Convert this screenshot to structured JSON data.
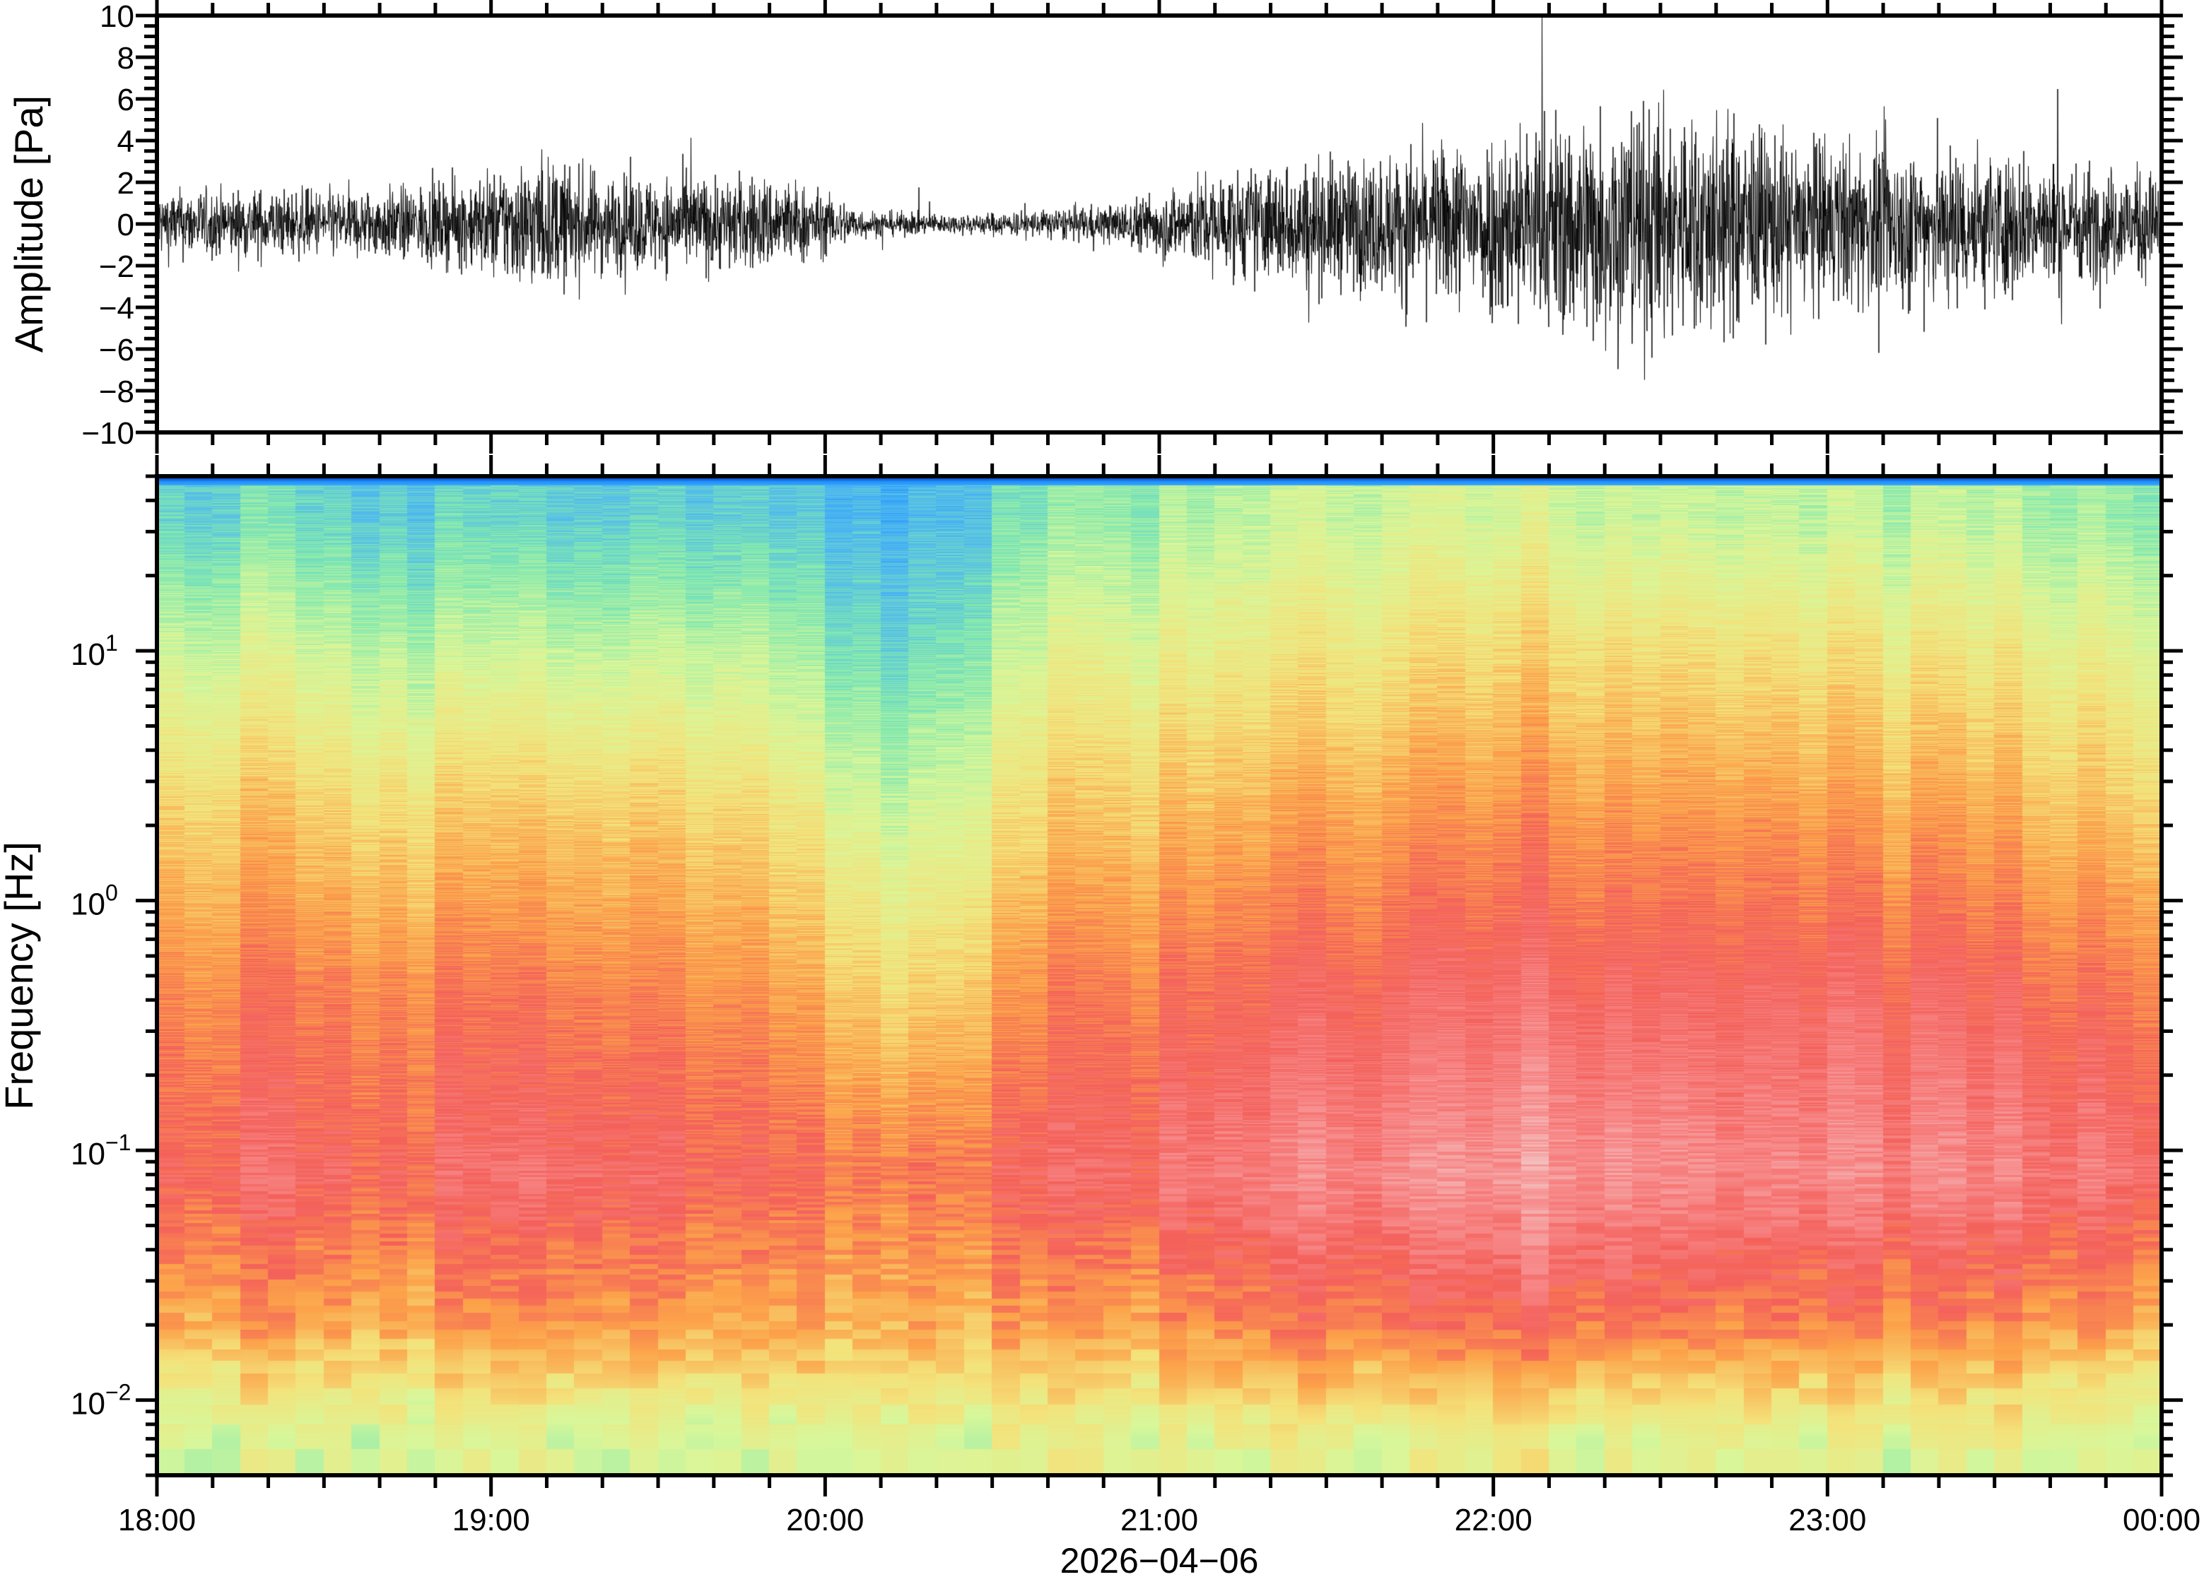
{
  "chart_data": [
    {
      "type": "line",
      "ylabel": "Amplitude [Pa]",
      "xlabel": "",
      "ylim": [
        -10,
        10
      ],
      "yticks": [
        "10",
        "8",
        "6",
        "4",
        "2",
        "0",
        "−2",
        "−4",
        "−6",
        "−8",
        "−10"
      ],
      "ytick_values": [
        10,
        8,
        6,
        4,
        2,
        0,
        -2,
        -4,
        -6,
        -8,
        -10
      ],
      "x_range": [
        "18:00",
        "00:00"
      ],
      "envelope_interval_min": 15,
      "envelope_abs_max_pa": [
        2.5,
        2.5,
        2.5,
        3,
        5,
        3.5,
        3.5,
        3.5,
        1,
        0.7,
        1,
        1.5,
        3.5,
        4.5,
        5,
        6,
        8,
        9,
        8.5,
        6.5,
        6,
        6,
        5,
        4
      ],
      "grid": false
    },
    {
      "type": "heatmap",
      "ylabel": "Frequency [Hz]",
      "xlabel": "2026−04−06",
      "yscale": "log",
      "ylim": [
        0.005,
        50
      ],
      "yticks": [
        {
          "base": "10",
          "exp": "1",
          "value": 10
        },
        {
          "base": "10",
          "exp": "0",
          "value": 1
        },
        {
          "base": "10",
          "exp": "−1",
          "value": 0.1
        },
        {
          "base": "10",
          "exp": "−2",
          "value": 0.01
        }
      ],
      "xticks": [
        "18:00",
        "19:00",
        "20:00",
        "21:00",
        "22:00",
        "23:00",
        "00:00"
      ],
      "time_bin_centers_h": [
        18.25,
        18.75,
        19.25,
        19.75,
        20.25,
        20.75,
        21.25,
        21.75,
        22.25,
        22.75,
        23.25,
        23.75
      ],
      "band_center_hz": [
        35,
        10,
        2.2,
        0.45,
        0.08,
        0.02,
        0.007
      ],
      "relative_power_level": [
        [
          0.3,
          0.28,
          0.25,
          0.3,
          0.2,
          0.35,
          0.4,
          0.45,
          0.45,
          0.42,
          0.4,
          0.38
        ],
        [
          0.45,
          0.42,
          0.4,
          0.45,
          0.28,
          0.48,
          0.5,
          0.55,
          0.58,
          0.55,
          0.52,
          0.5
        ],
        [
          0.6,
          0.58,
          0.58,
          0.6,
          0.42,
          0.6,
          0.63,
          0.68,
          0.7,
          0.68,
          0.65,
          0.62
        ],
        [
          0.72,
          0.72,
          0.7,
          0.72,
          0.55,
          0.72,
          0.75,
          0.8,
          0.82,
          0.8,
          0.78,
          0.75
        ],
        [
          0.8,
          0.8,
          0.8,
          0.8,
          0.72,
          0.8,
          0.85,
          0.9,
          0.93,
          0.88,
          0.87,
          0.85
        ],
        [
          0.66,
          0.66,
          0.66,
          0.68,
          0.64,
          0.66,
          0.7,
          0.74,
          0.76,
          0.72,
          0.7,
          0.68
        ],
        [
          0.45,
          0.45,
          0.44,
          0.46,
          0.47,
          0.48,
          0.47,
          0.5,
          0.5,
          0.48,
          0.46,
          0.47
        ]
      ],
      "colormap": [
        "#0a0a80",
        "#1e90ff",
        "#4fb8f0",
        "#80e8b0",
        "#d8f79a",
        "#f4e27a",
        "#fca24a",
        "#f4605a",
        "#f78a8a",
        "#f4c0c0"
      ]
    }
  ]
}
